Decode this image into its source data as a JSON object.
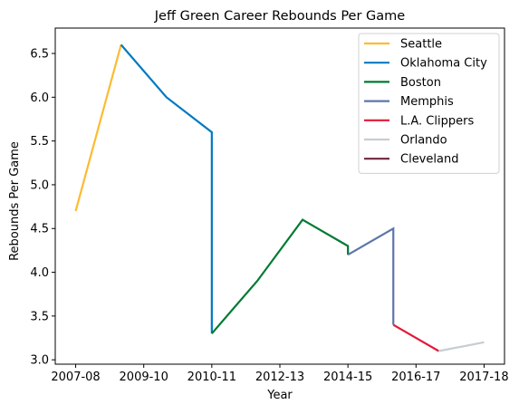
{
  "chart_data": {
    "type": "line",
    "title": "Jeff Green  Career Rebounds Per Game",
    "xlabel": "Year",
    "ylabel": "Rebounds Per Game",
    "x_tick_labels": [
      "2007-08",
      "2009-10",
      "2010-11",
      "2012-13",
      "2014-15",
      "2016-17",
      "2017-18"
    ],
    "x_tick_positions": [
      0,
      1.5,
      3,
      4.5,
      6,
      7.5,
      9
    ],
    "xlim": [
      -0.45,
      9.45
    ],
    "ylim": [
      2.95,
      6.79
    ],
    "y_ticks": [
      3.0,
      3.5,
      4.0,
      4.5,
      5.0,
      5.5,
      6.0,
      6.5
    ],
    "grid": false,
    "legend_placement": "top-right",
    "series": [
      {
        "name": "Seattle",
        "color": "#FDBB30",
        "points": [
          [
            0,
            4.7
          ],
          [
            1,
            6.6
          ]
        ]
      },
      {
        "name": "Oklahoma City",
        "color": "#007AC1",
        "points": [
          [
            1,
            6.6
          ],
          [
            2,
            6.0
          ],
          [
            3,
            5.6
          ],
          [
            3,
            3.3
          ]
        ]
      },
      {
        "name": "Boston",
        "color": "#007A33",
        "points": [
          [
            3,
            3.3
          ],
          [
            4,
            3.9
          ],
          [
            5,
            4.6
          ],
          [
            6,
            4.3
          ],
          [
            6,
            4.2
          ]
        ]
      },
      {
        "name": "Memphis",
        "color": "#5D76A9",
        "points": [
          [
            6,
            4.2
          ],
          [
            7,
            4.5
          ],
          [
            7,
            3.4
          ]
        ]
      },
      {
        "name": "L.A. Clippers",
        "color": "#E31837",
        "points": [
          [
            7,
            3.4
          ],
          [
            8,
            3.1
          ]
        ]
      },
      {
        "name": "Orlando",
        "color": "#C4CED4",
        "points": [
          [
            8,
            3.1
          ],
          [
            9,
            3.2
          ]
        ]
      },
      {
        "name": "Cleveland",
        "color": "#6F263D",
        "points": []
      }
    ]
  }
}
